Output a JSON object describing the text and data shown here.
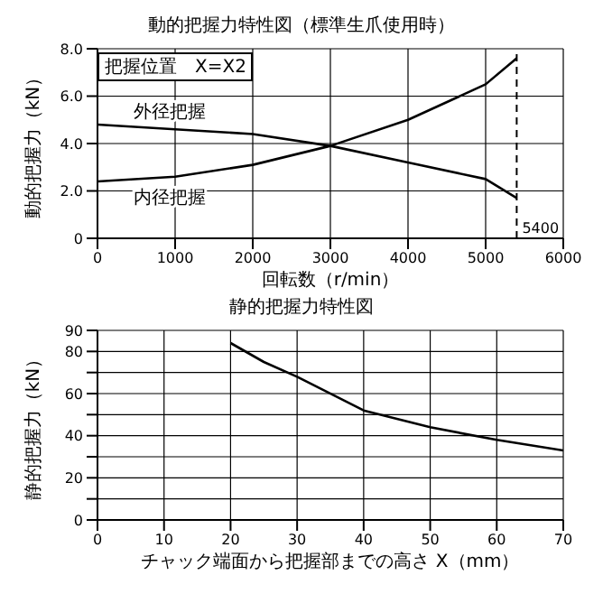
{
  "chart_data": [
    {
      "type": "line",
      "title": "動的把握力特性図（標準生爪使用時）",
      "xlabel": "回転数（r/min）",
      "ylabel": "動的把握力（kN）",
      "annotations": [
        "把握位置　X=X2"
      ],
      "x": [
        0,
        1000,
        2000,
        3000,
        4000,
        5000,
        5400
      ],
      "series": [
        {
          "name": "外径把握",
          "color": "#000000",
          "values": [
            4.8,
            4.6,
            4.4,
            3.9,
            3.2,
            2.5,
            1.7
          ]
        },
        {
          "name": "内径把握",
          "color": "#000000",
          "values": [
            2.4,
            2.6,
            3.1,
            3.9,
            5.0,
            6.5,
            7.6
          ]
        }
      ],
      "xlim": [
        0,
        6000
      ],
      "xticks": [
        0,
        1000,
        2000,
        3000,
        4000,
        5000,
        6000
      ],
      "ylim": [
        0,
        8
      ],
      "yticks": [
        0,
        {
          "value": 2,
          "label": "2.0"
        },
        {
          "value": 4,
          "label": "4.0"
        },
        {
          "value": 6,
          "label": "6.0"
        },
        {
          "value": 8,
          "label": "8.0"
        }
      ],
      "ref_lines": [
        {
          "axis": "x",
          "value": 5400,
          "label": "5400",
          "line_style": "dashed"
        }
      ],
      "grid": true
    },
    {
      "type": "line",
      "title": "静的把握力特性図",
      "xlabel": "チャック端面から把握部までの高さ X（mm）",
      "ylabel": "静的把握力（kN）",
      "x": [
        20,
        25,
        30,
        40,
        50,
        60,
        70
      ],
      "series": [
        {
          "color": "#000000",
          "values": [
            84,
            75,
            68,
            52,
            44,
            38,
            33
          ]
        }
      ],
      "xlim": [
        0,
        70
      ],
      "xticks": [
        0,
        10,
        20,
        30,
        40,
        50,
        60,
        70
      ],
      "ylim": [
        0,
        90
      ],
      "yticks": [
        0,
        {
          "value": 10,
          "label": null
        },
        20,
        {
          "value": 30,
          "label": null
        },
        40,
        {
          "value": 50,
          "label": null
        },
        60,
        {
          "value": 70,
          "label": null
        },
        80,
        90
      ],
      "grid": true
    }
  ]
}
